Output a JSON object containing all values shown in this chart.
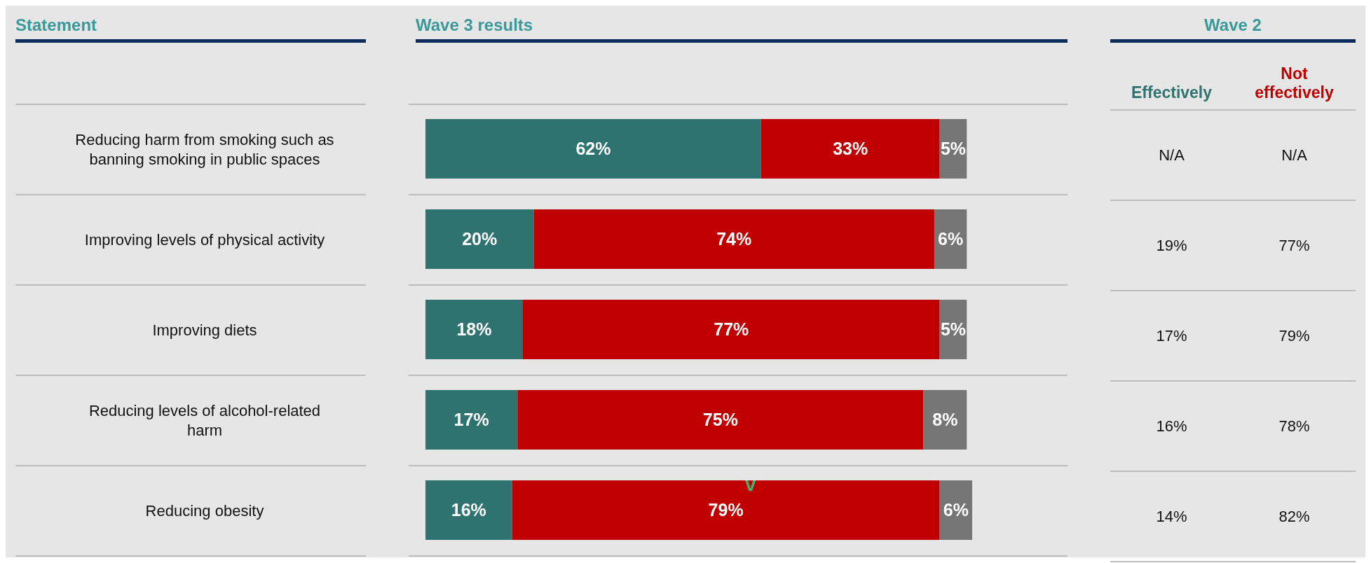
{
  "chart_data": [
    {
      "type": "bar",
      "orientation": "horizontal",
      "stacked": true,
      "title": "Wave 3 results",
      "ylabel": "Statement",
      "categories": [
        "Reducing harm from smoking such as banning smoking in public spaces",
        "Improving levels of physical activity",
        "Improving diets",
        "Reducing levels of alcohol-related harm",
        "Reducing obesity"
      ],
      "series": [
        {
          "color": "#2e7370",
          "values": [
            62,
            20,
            18,
            17,
            16
          ],
          "value_labels": [
            "62%",
            "20%",
            "18%",
            "17%",
            "16%"
          ]
        },
        {
          "color": "#c00000",
          "values": [
            33,
            74,
            77,
            75,
            79
          ],
          "value_labels": [
            "33%",
            "74%",
            "77%",
            "75%",
            "79%"
          ]
        },
        {
          "color": "#767676",
          "values": [
            5,
            6,
            5,
            8,
            6
          ],
          "value_labels": [
            "5%",
            "6%",
            "5%",
            "8%",
            "6%"
          ]
        }
      ],
      "annotations": [
        "v"
      ],
      "grid": false,
      "legend": false
    },
    {
      "type": "other",
      "title": "Wave 2",
      "annotations": [
        "Effectively",
        "Not effectively",
        "N/A",
        "N/A",
        "19%",
        "77%",
        "17%",
        "79%",
        "16%",
        "78%",
        "14%",
        "82%"
      ]
    }
  ]
}
